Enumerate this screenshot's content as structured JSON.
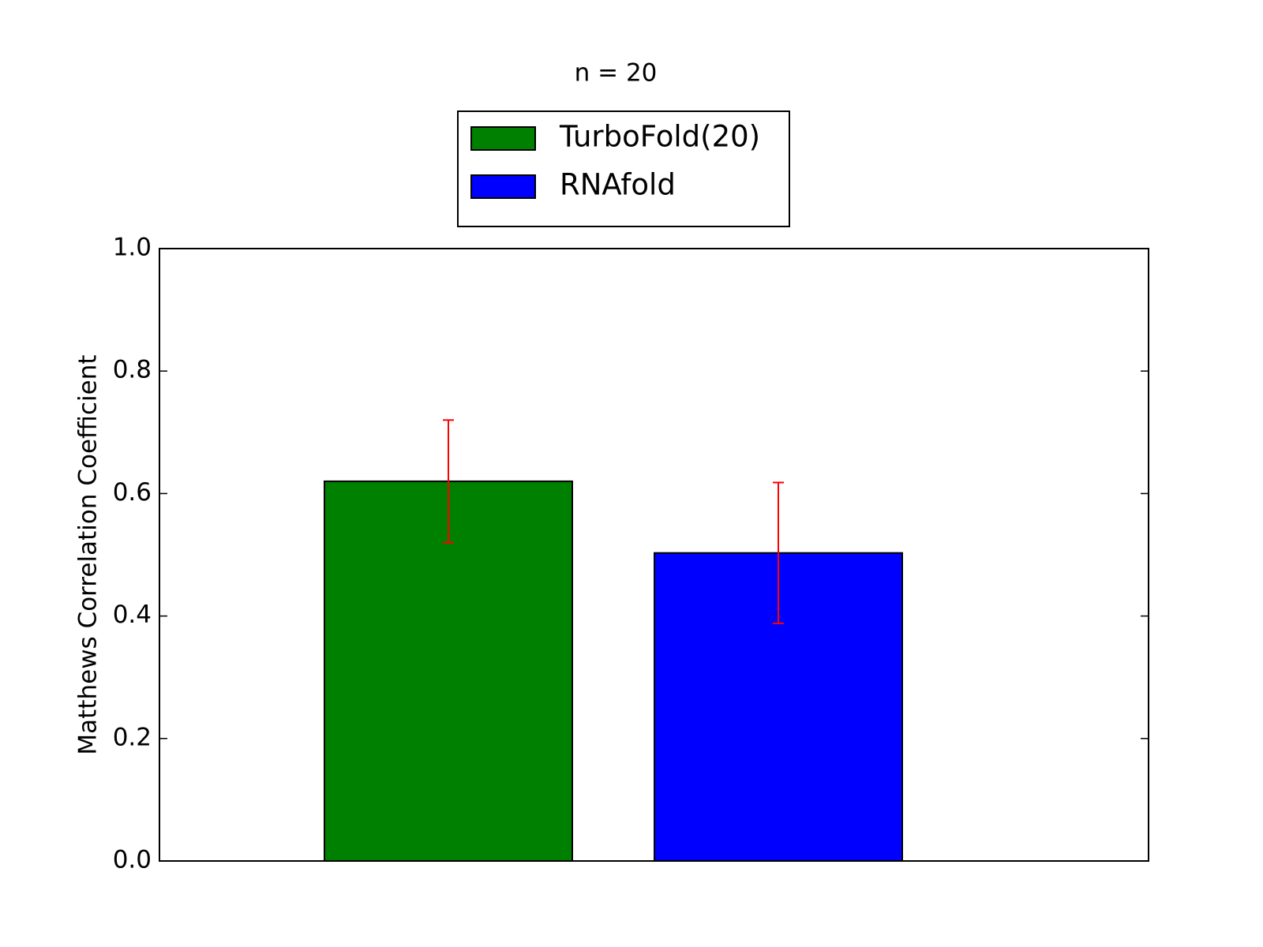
{
  "chart_data": {
    "type": "bar",
    "title": "n = 20",
    "ylabel": "Matthews Correlation Coefficient",
    "categories": [
      null
    ],
    "series": [
      {
        "name": "TurboFold(20)",
        "color": "#008000",
        "values": [
          0.62
        ],
        "errors": [
          0.1
        ]
      },
      {
        "name": "RNAfold",
        "color": "#0000ff",
        "values": [
          0.503
        ],
        "errors": [
          0.115
        ]
      }
    ],
    "error_color": "#ff0000",
    "ylim": [
      0,
      1
    ],
    "yticks": [
      {
        "value": 0,
        "label": "0.0"
      },
      {
        "value": 0.2,
        "label": "0.2"
      },
      {
        "value": 0.4,
        "label": "0.4"
      },
      {
        "value": 0.6,
        "label": "0.6"
      },
      {
        "value": 0.8,
        "label": "0.8"
      },
      {
        "value": 1,
        "label": "1.0"
      }
    ],
    "legend": "upper center"
  }
}
